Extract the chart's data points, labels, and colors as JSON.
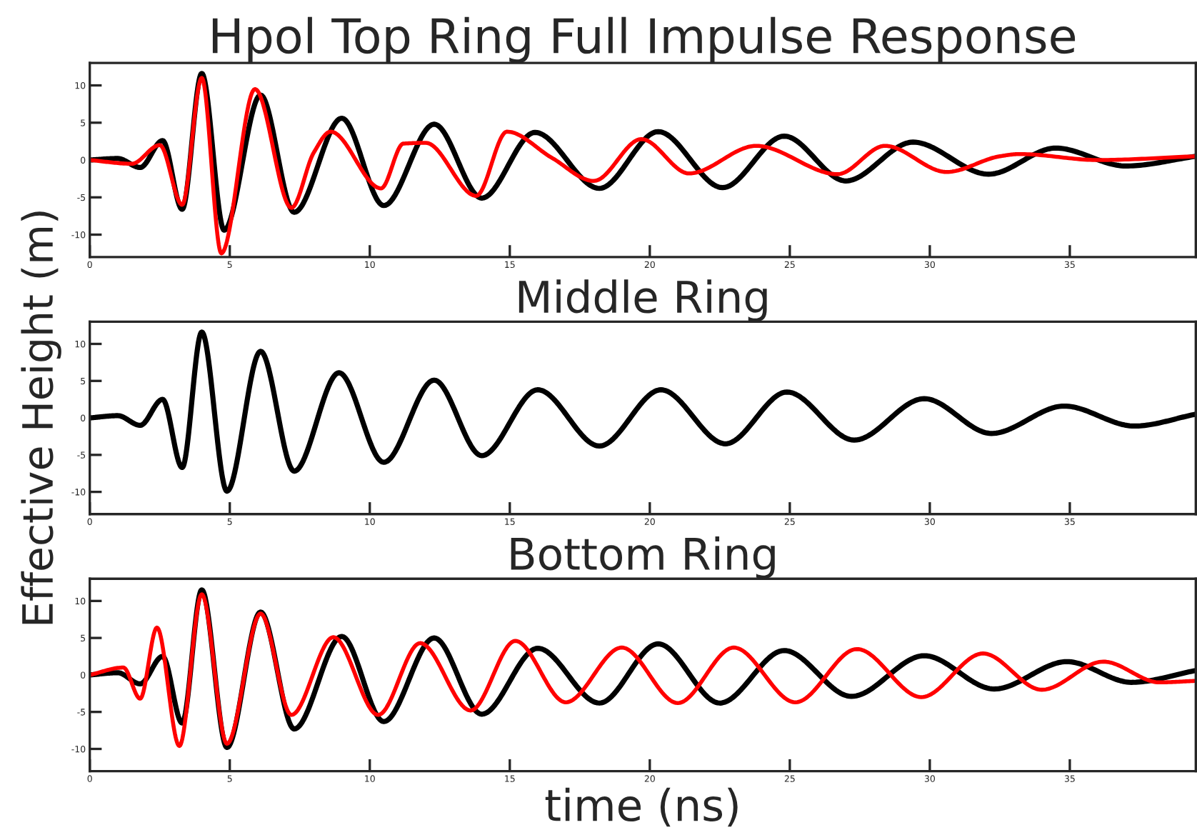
{
  "chart_data": [
    {
      "type": "line",
      "title": "Hpol Top Ring Full Impulse Response",
      "xlim": [
        0,
        39.5
      ],
      "ylim": [
        -13,
        13
      ],
      "xticks": [
        0,
        5,
        10,
        15,
        20,
        25,
        30,
        35
      ],
      "yticks": [
        -10,
        -5,
        0,
        5,
        10
      ],
      "grid": false,
      "legend": false,
      "series": [
        {
          "color": "#000000",
          "x": [
            0,
            1.0,
            1.8,
            2.6,
            3.3,
            4.0,
            4.8,
            6.1,
            7.3,
            9.0,
            10.5,
            12.3,
            14.0,
            15.9,
            18.2,
            20.3,
            22.6,
            24.8,
            27.0,
            29.4,
            32.1,
            34.5,
            37.0,
            39.5
          ],
          "values": [
            0,
            0.2,
            -1,
            2.6,
            -6.6,
            11.6,
            -9.4,
            8.7,
            -7,
            5.6,
            -6.1,
            4.8,
            -5.1,
            3.7,
            -3.8,
            3.8,
            -3.7,
            3.2,
            -2.8,
            2.4,
            -1.9,
            1.6,
            -0.8,
            0.5
          ]
        },
        {
          "color": "#ff0000",
          "x": [
            0,
            1.5,
            2.5,
            3.3,
            4.0,
            4.7,
            5.9,
            7.2,
            8.0,
            8.6,
            10.4,
            11.2,
            12.0,
            13.8,
            14.9,
            16.5,
            18.0,
            19.7,
            21.4,
            23.8,
            26.7,
            28.4,
            30.6,
            32.5,
            33.2,
            36.0,
            39.5
          ],
          "values": [
            0,
            -0.5,
            2,
            -6,
            11,
            -12.5,
            9.5,
            -6.4,
            1.0,
            3.8,
            -3.8,
            2.2,
            2.3,
            -4.8,
            3.8,
            0.3,
            -2.8,
            2.8,
            -1.8,
            1.9,
            -1.9,
            1.9,
            -1.6,
            0.5,
            0.8,
            0,
            0.5
          ]
        }
      ]
    },
    {
      "type": "line",
      "title": "Middle Ring",
      "ylabel": "Effective Height (m)",
      "xlim": [
        0,
        39.5
      ],
      "ylim": [
        -13,
        13
      ],
      "xticks": [
        0,
        5,
        10,
        15,
        20,
        25,
        30,
        35
      ],
      "yticks": [
        -10,
        -5,
        0,
        5,
        10
      ],
      "grid": false,
      "legend": false,
      "series": [
        {
          "color": "#000000",
          "x": [
            0,
            1.0,
            1.8,
            2.6,
            3.3,
            4.0,
            4.9,
            6.1,
            7.3,
            8.9,
            10.5,
            12.3,
            14.0,
            16.0,
            18.2,
            20.4,
            22.7,
            24.9,
            27.3,
            29.8,
            32.2,
            34.8,
            37.3,
            39.5
          ],
          "values": [
            0,
            0.3,
            -1,
            2.5,
            -6.7,
            11.6,
            -9.9,
            9.0,
            -7.2,
            6.1,
            -6,
            5.1,
            -5.1,
            3.8,
            -3.8,
            3.8,
            -3.5,
            3.5,
            -3,
            2.6,
            -2.1,
            1.6,
            -1.1,
            0.5
          ]
        }
      ]
    },
    {
      "type": "line",
      "title": "Bottom Ring",
      "xlabel": "time (ns)",
      "xlim": [
        0,
        39.5
      ],
      "ylim": [
        -13,
        13
      ],
      "xticks": [
        0,
        5,
        10,
        15,
        20,
        25,
        30,
        35
      ],
      "yticks": [
        -10,
        -5,
        0,
        5,
        10
      ],
      "grid": false,
      "legend": false,
      "series": [
        {
          "color": "#000000",
          "x": [
            0,
            1.0,
            1.8,
            2.6,
            3.3,
            4.0,
            4.9,
            6.1,
            7.3,
            9.0,
            10.5,
            12.3,
            14.0,
            16.0,
            18.2,
            20.3,
            22.5,
            24.8,
            27.2,
            29.8,
            32.3,
            34.9,
            37.2,
            39.5
          ],
          "values": [
            0,
            0.3,
            -1.2,
            2.5,
            -6.5,
            11.5,
            -9.8,
            8.5,
            -7.3,
            5.2,
            -6.3,
            5,
            -5.3,
            3.6,
            -3.8,
            4.2,
            -3.8,
            3.3,
            -2.9,
            2.6,
            -1.9,
            1.8,
            -1,
            0.6
          ]
        },
        {
          "color": "#ff0000",
          "x": [
            0,
            1.2,
            1.8,
            2.4,
            3.2,
            4.0,
            4.9,
            6.1,
            7.2,
            8.7,
            10.3,
            11.8,
            13.6,
            15.2,
            17.0,
            19.0,
            21.0,
            23.0,
            25.2,
            27.4,
            29.7,
            31.9,
            34.0,
            36.2,
            38.2,
            39.5
          ],
          "values": [
            0,
            1.0,
            -3.2,
            6.4,
            -9.6,
            10.9,
            -9.3,
            8.3,
            -5.4,
            5.1,
            -5.4,
            4.3,
            -4.8,
            4.6,
            -3.7,
            3.7,
            -3.8,
            3.7,
            -3.7,
            3.5,
            -3.0,
            2.9,
            -2.0,
            1.8,
            -1.0,
            -0.8
          ]
        }
      ]
    }
  ]
}
